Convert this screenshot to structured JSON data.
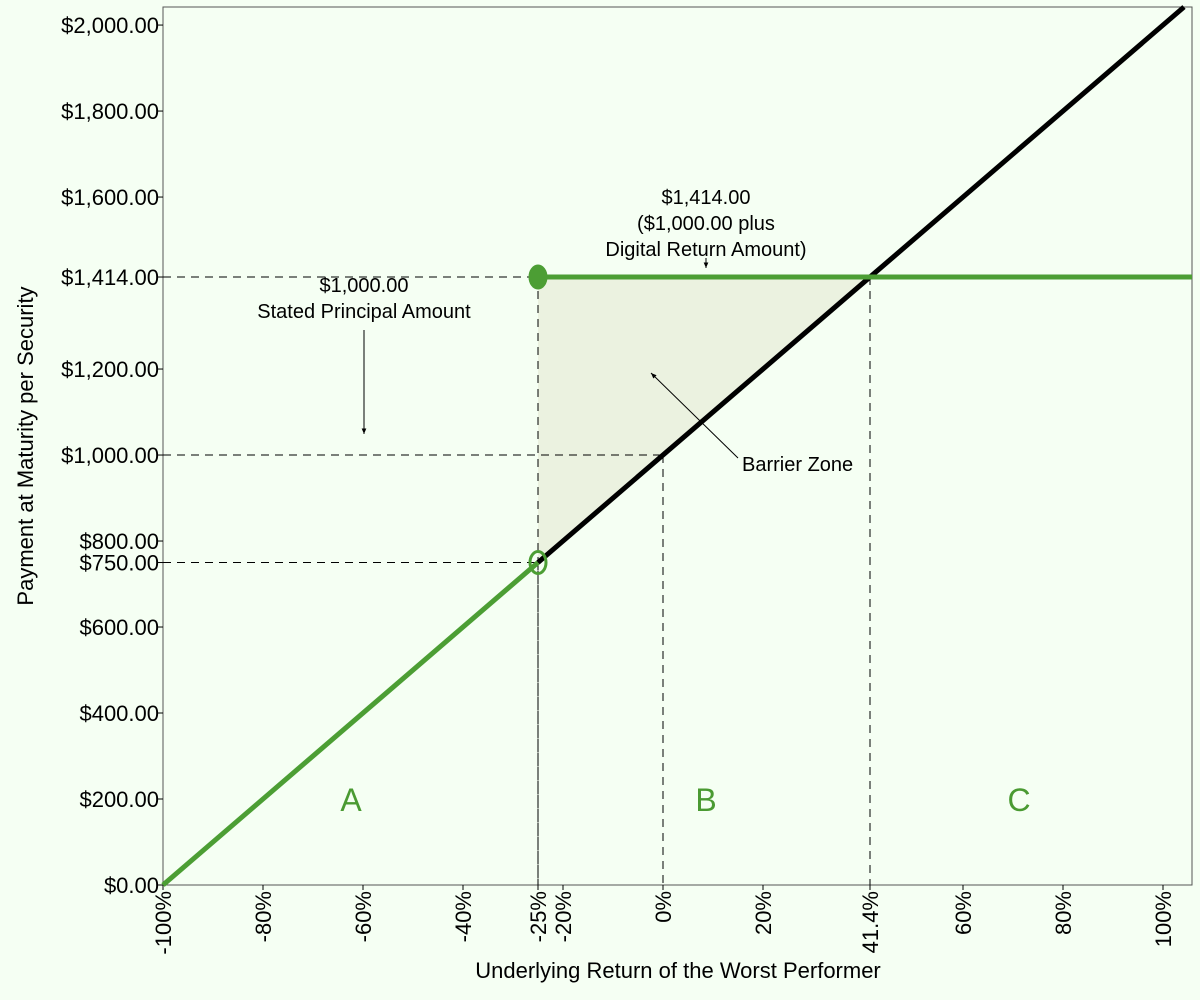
{
  "chart_data": {
    "type": "line",
    "xlabel": "Underlying Return of the Worst Performer",
    "ylabel": "Payment at Maturity per Security",
    "xlim": [
      -100,
      105.8
    ],
    "ylim": [
      0,
      2042
    ],
    "xticks": [
      {
        "value": -100,
        "label": "-100%"
      },
      {
        "value": -80,
        "label": "-80%"
      },
      {
        "value": -60,
        "label": "-60%"
      },
      {
        "value": -40,
        "label": "-40%"
      },
      {
        "value": -25,
        "label": "-25%"
      },
      {
        "value": -20,
        "label": "-20%"
      },
      {
        "value": 0,
        "label": "0%"
      },
      {
        "value": 20,
        "label": "20%"
      },
      {
        "value": 41.4,
        "label": "41.4%"
      },
      {
        "value": 60,
        "label": "60%"
      },
      {
        "value": 80,
        "label": "80%"
      },
      {
        "value": 100,
        "label": "100%"
      }
    ],
    "yticks": [
      {
        "value": 0,
        "label": "$0.00"
      },
      {
        "value": 200,
        "label": "$200.00"
      },
      {
        "value": 400,
        "label": "$400.00"
      },
      {
        "value": 600,
        "label": "$600.00"
      },
      {
        "value": 750,
        "label": "$750.00"
      },
      {
        "value": 800,
        "label": "$800.00"
      },
      {
        "value": 1000,
        "label": "$1,000.00"
      },
      {
        "value": 1200,
        "label": "$1,200.00"
      },
      {
        "value": 1414,
        "label": "$1,414.00"
      },
      {
        "value": 1600,
        "label": "$1,600.00"
      },
      {
        "value": 1800,
        "label": "$1,800.00"
      },
      {
        "value": 2000,
        "label": "$2,000.00"
      }
    ],
    "series": [
      {
        "color": "#000000",
        "x": [
          -25,
          104.2
        ],
        "values": [
          750,
          2042
        ]
      },
      {
        "color": "#4c9e34",
        "x": [
          -100,
          -25
        ],
        "values": [
          0,
          750
        ]
      },
      {
        "color": "#4c9e34",
        "x": [
          -25,
          105.8
        ],
        "values": [
          1414,
          1414
        ]
      }
    ],
    "markers": [
      {
        "x": -25,
        "y": 1414,
        "filled": true,
        "color": "#4c9e34"
      },
      {
        "x": -25,
        "y": 750,
        "filled": false,
        "color": "#4c9e34"
      }
    ],
    "reference_lines": [
      {
        "x": -25,
        "y": 1414
      },
      {
        "x": 0,
        "y": 1000
      },
      {
        "x": 41.4,
        "y": 1414
      },
      {
        "x": -25,
        "y": 750
      }
    ],
    "barrier_zone": {
      "x": [
        -25,
        -25,
        41.4
      ],
      "y": [
        750,
        1414,
        1414
      ],
      "color": "#ebf2e0",
      "label": "Barrier Zone"
    },
    "annotations": [
      {
        "lines": [
          "$1,414.00",
          "($1,000.00 plus",
          "Digital Return Amount)"
        ]
      },
      {
        "lines": [
          "$1,000.00",
          "Stated Principal Amount"
        ]
      }
    ],
    "regions": [
      "A",
      "B",
      "C"
    ]
  }
}
